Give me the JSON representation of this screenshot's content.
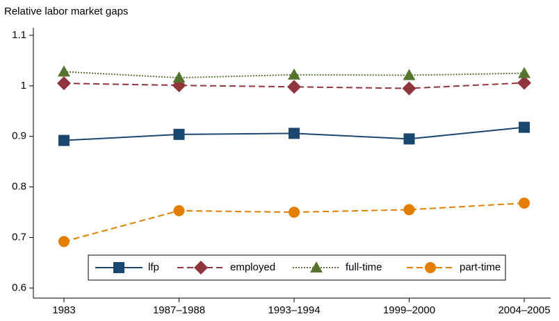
{
  "chart_data": {
    "type": "line",
    "y_axis_title": "Relative labor market gaps",
    "categories": [
      "1983",
      "1987–1988",
      "1993–1994",
      "1999–2000",
      "2004–2005"
    ],
    "series": [
      {
        "name": "lfp",
        "color": "#1a476f",
        "line_style": "solid",
        "marker": "square",
        "values": [
          0.892,
          0.904,
          0.906,
          0.895,
          0.918
        ]
      },
      {
        "name": "employed",
        "color": "#90353b",
        "line_style": "dashed",
        "marker": "diamond",
        "values": [
          1.005,
          1.001,
          0.998,
          0.995,
          1.006
        ]
      },
      {
        "name": "full-time",
        "color": "#55752f",
        "line_style": "dotted",
        "marker": "triangle",
        "values": [
          1.028,
          1.016,
          1.022,
          1.021,
          1.025
        ]
      },
      {
        "name": "part-time",
        "color": "#e37e00",
        "line_style": "dashed",
        "marker": "circle",
        "values": [
          0.692,
          0.753,
          0.75,
          0.755,
          0.768
        ]
      }
    ],
    "ylim": [
      0.58,
      1.115
    ],
    "yticks": [
      0.6,
      0.7,
      0.8,
      0.9,
      1,
      1.1
    ],
    "grid": false,
    "legend": "bottom"
  }
}
